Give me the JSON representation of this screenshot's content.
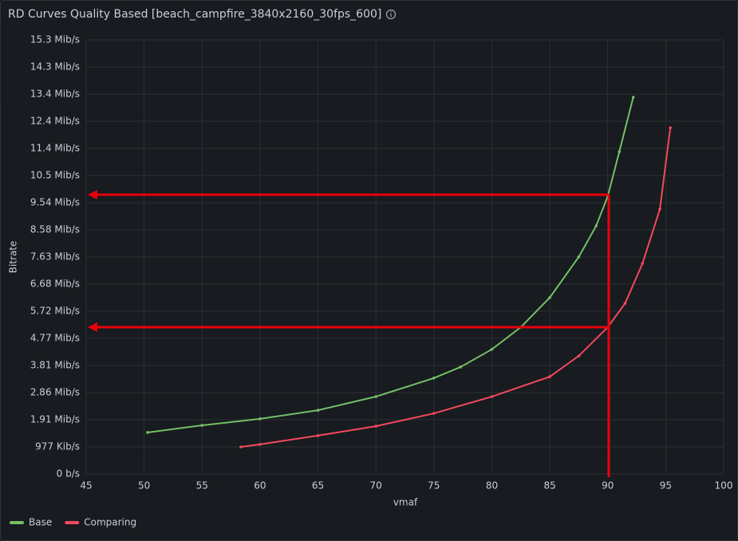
{
  "chart_data": {
    "type": "line",
    "title": "RD Curves Quality Based [beach_campfire_3840x2160_30fps_600]",
    "x_label": "vmaf",
    "y_label": "Bitrate",
    "xlim": [
      45,
      100
    ],
    "xticks": [
      45,
      50,
      55,
      60,
      65,
      70,
      75,
      80,
      85,
      90,
      95,
      100
    ],
    "ylim": [
      0,
      15.2588
    ],
    "yticks": [
      {
        "value": 0,
        "label": "0 b/s"
      },
      {
        "value": 0.9537,
        "label": "977 Kib/s"
      },
      {
        "value": 1.9073,
        "label": "1.91 Mib/s"
      },
      {
        "value": 2.861,
        "label": "2.86 Mib/s"
      },
      {
        "value": 3.8147,
        "label": "3.81 Mib/s"
      },
      {
        "value": 4.7684,
        "label": "4.77 Mib/s"
      },
      {
        "value": 5.722,
        "label": "5.72 Mib/s"
      },
      {
        "value": 6.6757,
        "label": "6.68 Mib/s"
      },
      {
        "value": 7.6294,
        "label": "7.63 Mib/s"
      },
      {
        "value": 8.5831,
        "label": "8.58 Mib/s"
      },
      {
        "value": 9.5367,
        "label": "9.54 Mib/s"
      },
      {
        "value": 10.4904,
        "label": "10.5 Mib/s"
      },
      {
        "value": 11.4441,
        "label": "11.4 Mib/s"
      },
      {
        "value": 12.3978,
        "label": "12.4 Mib/s"
      },
      {
        "value": 13.3514,
        "label": "13.4 Mib/s"
      },
      {
        "value": 14.3051,
        "label": "14.3 Mib/s"
      },
      {
        "value": 15.2588,
        "label": "15.3 Mib/s"
      }
    ],
    "grid": true,
    "legend": "bottom-left",
    "series": [
      {
        "name": "Base",
        "color": "#73bf69",
        "x": [
          50.3,
          55,
          60,
          65,
          70,
          75,
          77.3,
          80,
          82.5,
          85,
          87.5,
          89,
          90,
          91,
          92.2
        ],
        "values": [
          1.46,
          1.71,
          1.94,
          2.24,
          2.72,
          3.37,
          3.76,
          4.38,
          5.16,
          6.2,
          7.63,
          8.72,
          9.76,
          11.33,
          13.24
        ]
      },
      {
        "name": "Comparing",
        "color": "#f2495c",
        "x": [
          58.35,
          60,
          65,
          70,
          75,
          80,
          85,
          87.5,
          90,
          91.5,
          93,
          94.5,
          95.4
        ],
        "values": [
          0.95,
          1.04,
          1.35,
          1.68,
          2.13,
          2.72,
          3.42,
          4.15,
          5.16,
          6.0,
          7.4,
          9.31,
          12.17
        ]
      }
    ]
  }
}
